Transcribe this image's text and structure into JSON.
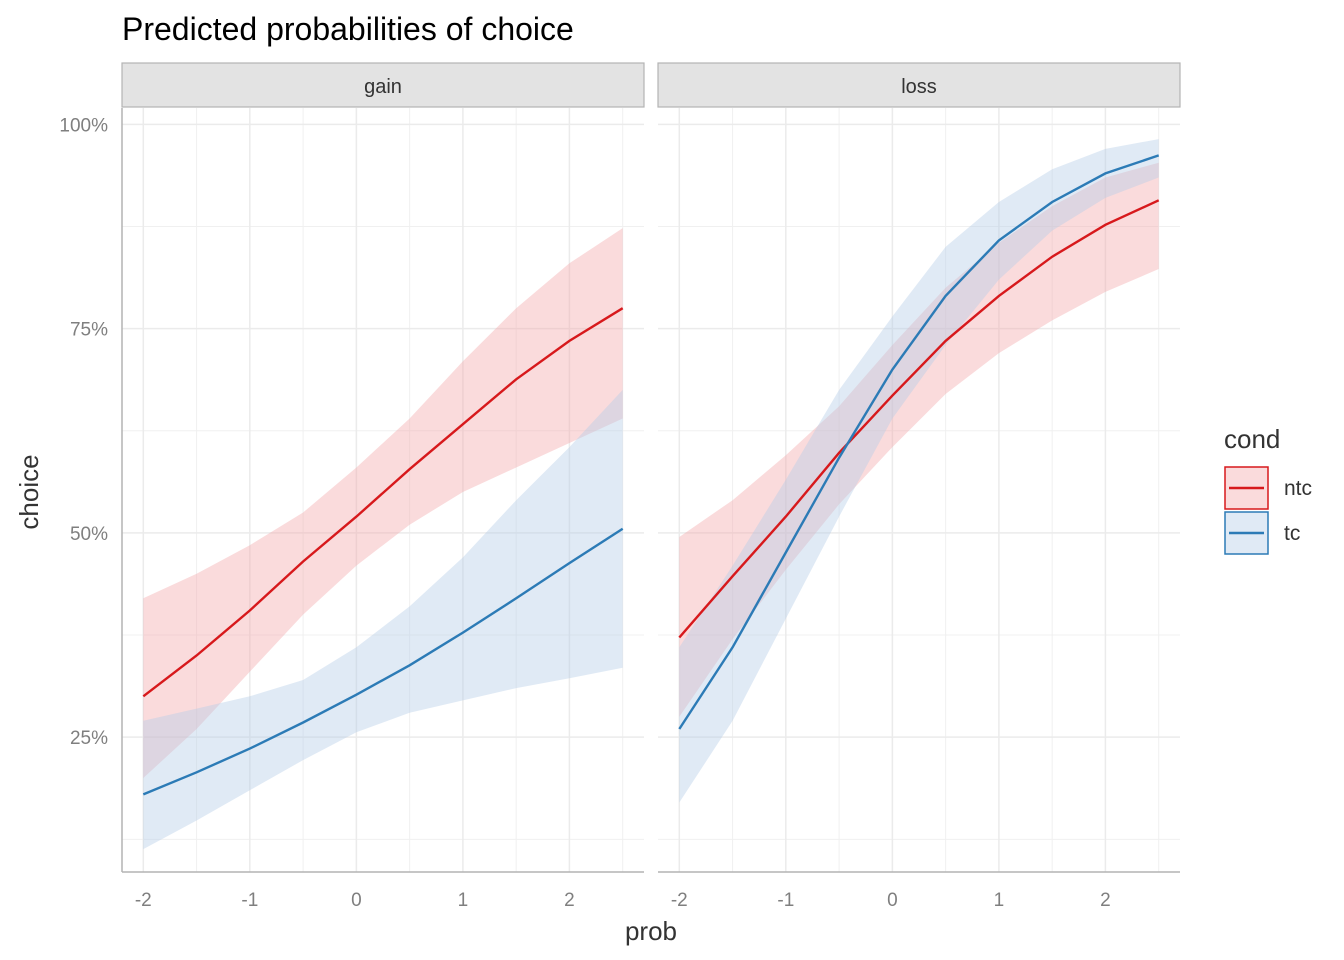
{
  "chart_data": {
    "type": "line",
    "title": "Predicted probabilities of choice",
    "xlabel": "prob",
    "ylabel": "choice",
    "xlim": [
      -2.2,
      2.7
    ],
    "ylim": [
      0.085,
      1.02
    ],
    "x_ticks": [
      -2,
      -1,
      0,
      1,
      2
    ],
    "x_tick_labels": [
      "-2",
      "-1",
      "0",
      "1",
      "2"
    ],
    "y_ticks": [
      0.25,
      0.5,
      0.75,
      1.0
    ],
    "y_tick_labels": [
      "25%",
      "50%",
      "75%",
      "100%"
    ],
    "grid": true,
    "legend": {
      "title": "cond",
      "position": "right",
      "entries": [
        {
          "name": "ntc",
          "color": "#d7191c",
          "fill": "#f4a9ab"
        },
        {
          "name": "tc",
          "color": "#2c7bb6",
          "fill": "#b4cde6"
        }
      ]
    },
    "x": [
      -2,
      -1.5,
      -1,
      -0.5,
      0,
      0.5,
      1,
      1.5,
      2,
      2.5
    ],
    "panels": [
      {
        "name": "gain",
        "series": [
          {
            "name": "ntc",
            "values": [
              0.3,
              0.35,
              0.405,
              0.465,
              0.52,
              0.578,
              0.633,
              0.688,
              0.735,
              0.775
            ],
            "lower": [
              0.2,
              0.26,
              0.33,
              0.4,
              0.46,
              0.51,
              0.55,
              0.58,
              0.61,
              0.64
            ],
            "upper": [
              0.42,
              0.45,
              0.485,
              0.525,
              0.58,
              0.64,
              0.71,
              0.775,
              0.83,
              0.873
            ]
          },
          {
            "name": "tc",
            "values": [
              0.18,
              0.207,
              0.236,
              0.268,
              0.302,
              0.338,
              0.378,
              0.42,
              0.463,
              0.505
            ],
            "lower": [
              0.113,
              0.148,
              0.185,
              0.222,
              0.256,
              0.28,
              0.295,
              0.31,
              0.322,
              0.335
            ],
            "upper": [
              0.27,
              0.285,
              0.3,
              0.32,
              0.36,
              0.41,
              0.47,
              0.54,
              0.605,
              0.675
            ]
          }
        ]
      },
      {
        "name": "loss",
        "series": [
          {
            "name": "ntc",
            "values": [
              0.372,
              0.447,
              0.52,
              0.598,
              0.668,
              0.735,
              0.79,
              0.838,
              0.877,
              0.907
            ],
            "lower": [
              0.275,
              0.37,
              0.455,
              0.535,
              0.605,
              0.67,
              0.72,
              0.76,
              0.795,
              0.823
            ],
            "upper": [
              0.495,
              0.54,
              0.595,
              0.655,
              0.73,
              0.8,
              0.855,
              0.9,
              0.935,
              0.953
            ]
          },
          {
            "name": "tc",
            "values": [
              0.26,
              0.36,
              0.476,
              0.592,
              0.7,
              0.79,
              0.858,
              0.905,
              0.94,
              0.962
            ],
            "lower": [
              0.17,
              0.27,
              0.395,
              0.52,
              0.64,
              0.73,
              0.81,
              0.87,
              0.91,
              0.935
            ],
            "upper": [
              0.36,
              0.46,
              0.565,
              0.675,
              0.765,
              0.85,
              0.905,
              0.945,
              0.97,
              0.982
            ]
          }
        ]
      }
    ]
  }
}
